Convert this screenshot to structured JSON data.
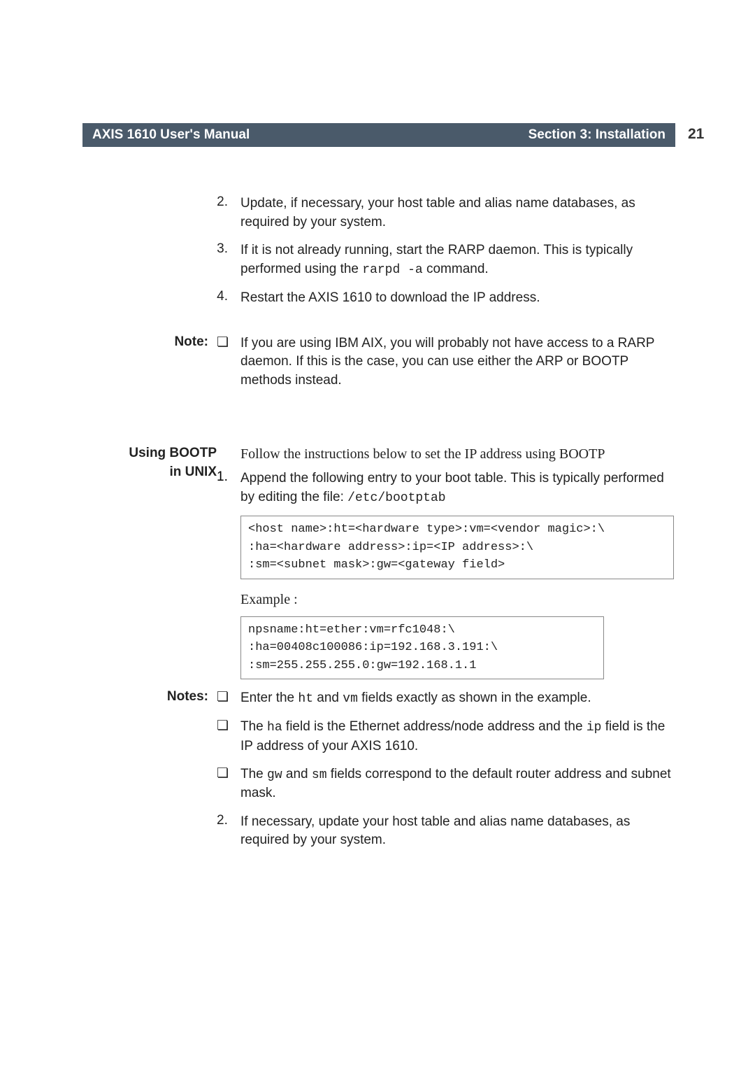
{
  "header": {
    "left": "AXIS 1610 User's Manual",
    "right": "Section 3: Installation",
    "page_number": "21"
  },
  "steps_a": [
    {
      "num": "2.",
      "text_parts": [
        "Update, if necessary, your host table and alias name databases, as required by your system."
      ]
    },
    {
      "num": "3.",
      "text_parts": [
        "If it is not already running, start the RARP daemon. This is typically performed using the ",
        "rarpd -a",
        " command."
      ],
      "mono_idx": 1
    },
    {
      "num": "4.",
      "text_parts": [
        "Restart the AXIS 1610 to download the IP address."
      ]
    }
  ],
  "note1": {
    "label": "Note:",
    "text": "If you are using IBM AIX, you will probably not have access to a RARP daemon. If this is the case, you can use either the ARP or BOOTP methods instead."
  },
  "section": {
    "label_line1": "Using BOOTP",
    "label_line2": "in UNIX",
    "intro": "Follow the instructions below to set the IP address using BOOTP",
    "step1_num": "1.",
    "step1_text": "Append the following entry to your boot table. This is typically performed by editing the file: ",
    "step1_mono": "/etc/bootptab"
  },
  "code1": "<host name>:ht=<hardware type>:vm=<vendor magic>:\\\n:ha=<hardware address>:ip=<IP address>:\\\n:sm=<subnet mask>:gw=<gateway field>",
  "example_label": "Example :",
  "code2": "npsname:ht=ether:vm=rfc1048:\\\n:ha=00408c100086:ip=192.168.3.191:\\\n:sm=255.255.255.0:gw=192.168.1.1",
  "notes2": {
    "label": "Notes:",
    "items": [
      {
        "parts": [
          "Enter the  ",
          "ht",
          " and ",
          "vm",
          " fields exactly as shown in the example."
        ],
        "mono": [
          1,
          3
        ]
      },
      {
        "parts": [
          "The ",
          "ha",
          " field is the Ethernet address/node address and the ",
          "ip",
          " field is the IP address of your AXIS 1610."
        ],
        "mono": [
          1,
          3
        ]
      },
      {
        "parts": [
          "The ",
          "gw",
          " and ",
          "sm",
          " fields correspond to the default router address and subnet mask."
        ],
        "mono": [
          1,
          3
        ]
      }
    ],
    "step2_num": "2.",
    "step2_text": "If necessary, update your host table and alias name databases, as required by your system."
  },
  "bullet_glyph": "❏"
}
